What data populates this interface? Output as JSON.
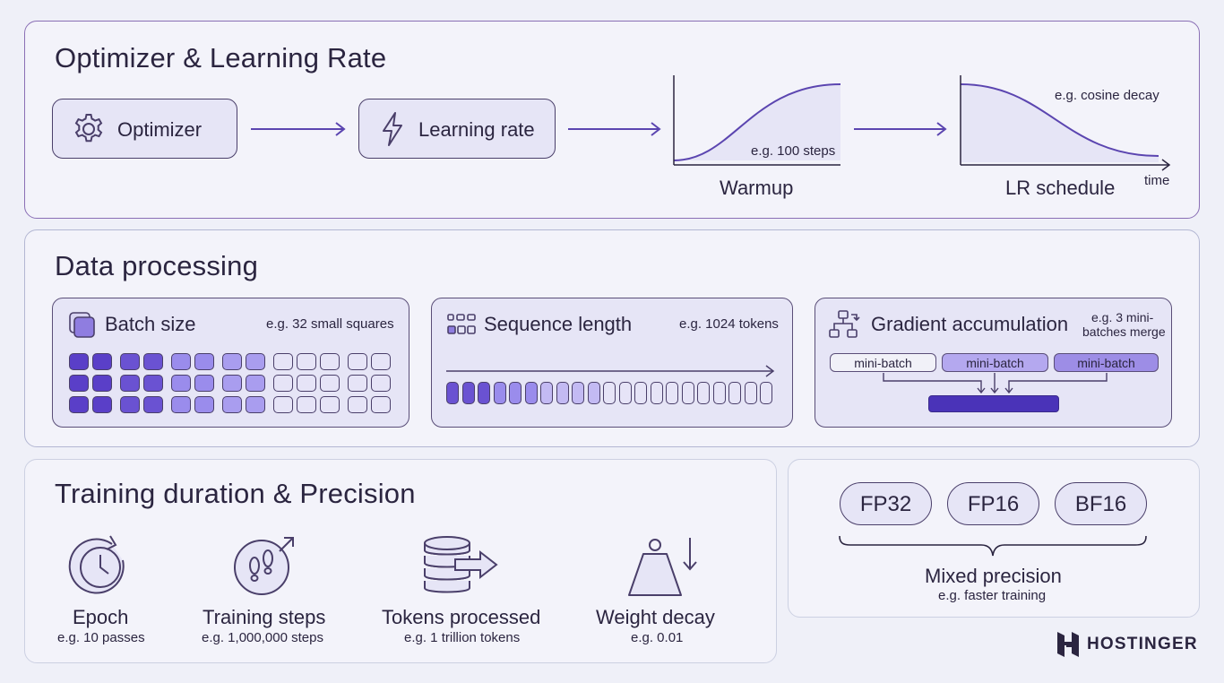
{
  "optimizer_section": {
    "title": "Optimizer & Learning Rate",
    "optimizer_label": "Optimizer",
    "learning_rate_label": "Learning rate",
    "warmup": {
      "label": "Warmup",
      "note": "e.g. 100 steps"
    },
    "lr_schedule": {
      "label": "LR schedule",
      "note": "e.g. cosine decay",
      "axis_label": "time"
    }
  },
  "data_section": {
    "title": "Data processing",
    "batch": {
      "label": "Batch size",
      "note": "e.g. 32 small squares"
    },
    "sequence": {
      "label": "Sequence length",
      "note": "e.g. 1024 tokens"
    },
    "gradient": {
      "label": "Gradient accumulation",
      "note_line1": "e.g. 3 mini-",
      "note_line2": "batches merge",
      "mini_batches": [
        "mini-batch",
        "mini-batch",
        "mini-batch"
      ]
    }
  },
  "training_section": {
    "title": "Training duration & Precision",
    "items": [
      {
        "label": "Epoch",
        "note": "e.g. 10 passes"
      },
      {
        "label": "Training steps",
        "note": "e.g. 1,000,000 steps"
      },
      {
        "label": "Tokens processed",
        "note": "e.g. 1 trillion tokens"
      },
      {
        "label": "Weight decay",
        "note": "e.g. 0.01"
      }
    ]
  },
  "precision_section": {
    "formats": [
      "FP32",
      "FP16",
      "BF16"
    ],
    "label": "Mixed precision",
    "note": "e.g. faster training"
  },
  "brand": {
    "name": "HOSTINGER"
  },
  "colors": {
    "accent": "#5b45b0",
    "accent_dark": "#4a33b8",
    "outline": "#4a3f6a",
    "panel_border_1": "#8a6fb5",
    "panel_border_2": "#b3b7d3",
    "box_fill": "#e6e5f6"
  }
}
